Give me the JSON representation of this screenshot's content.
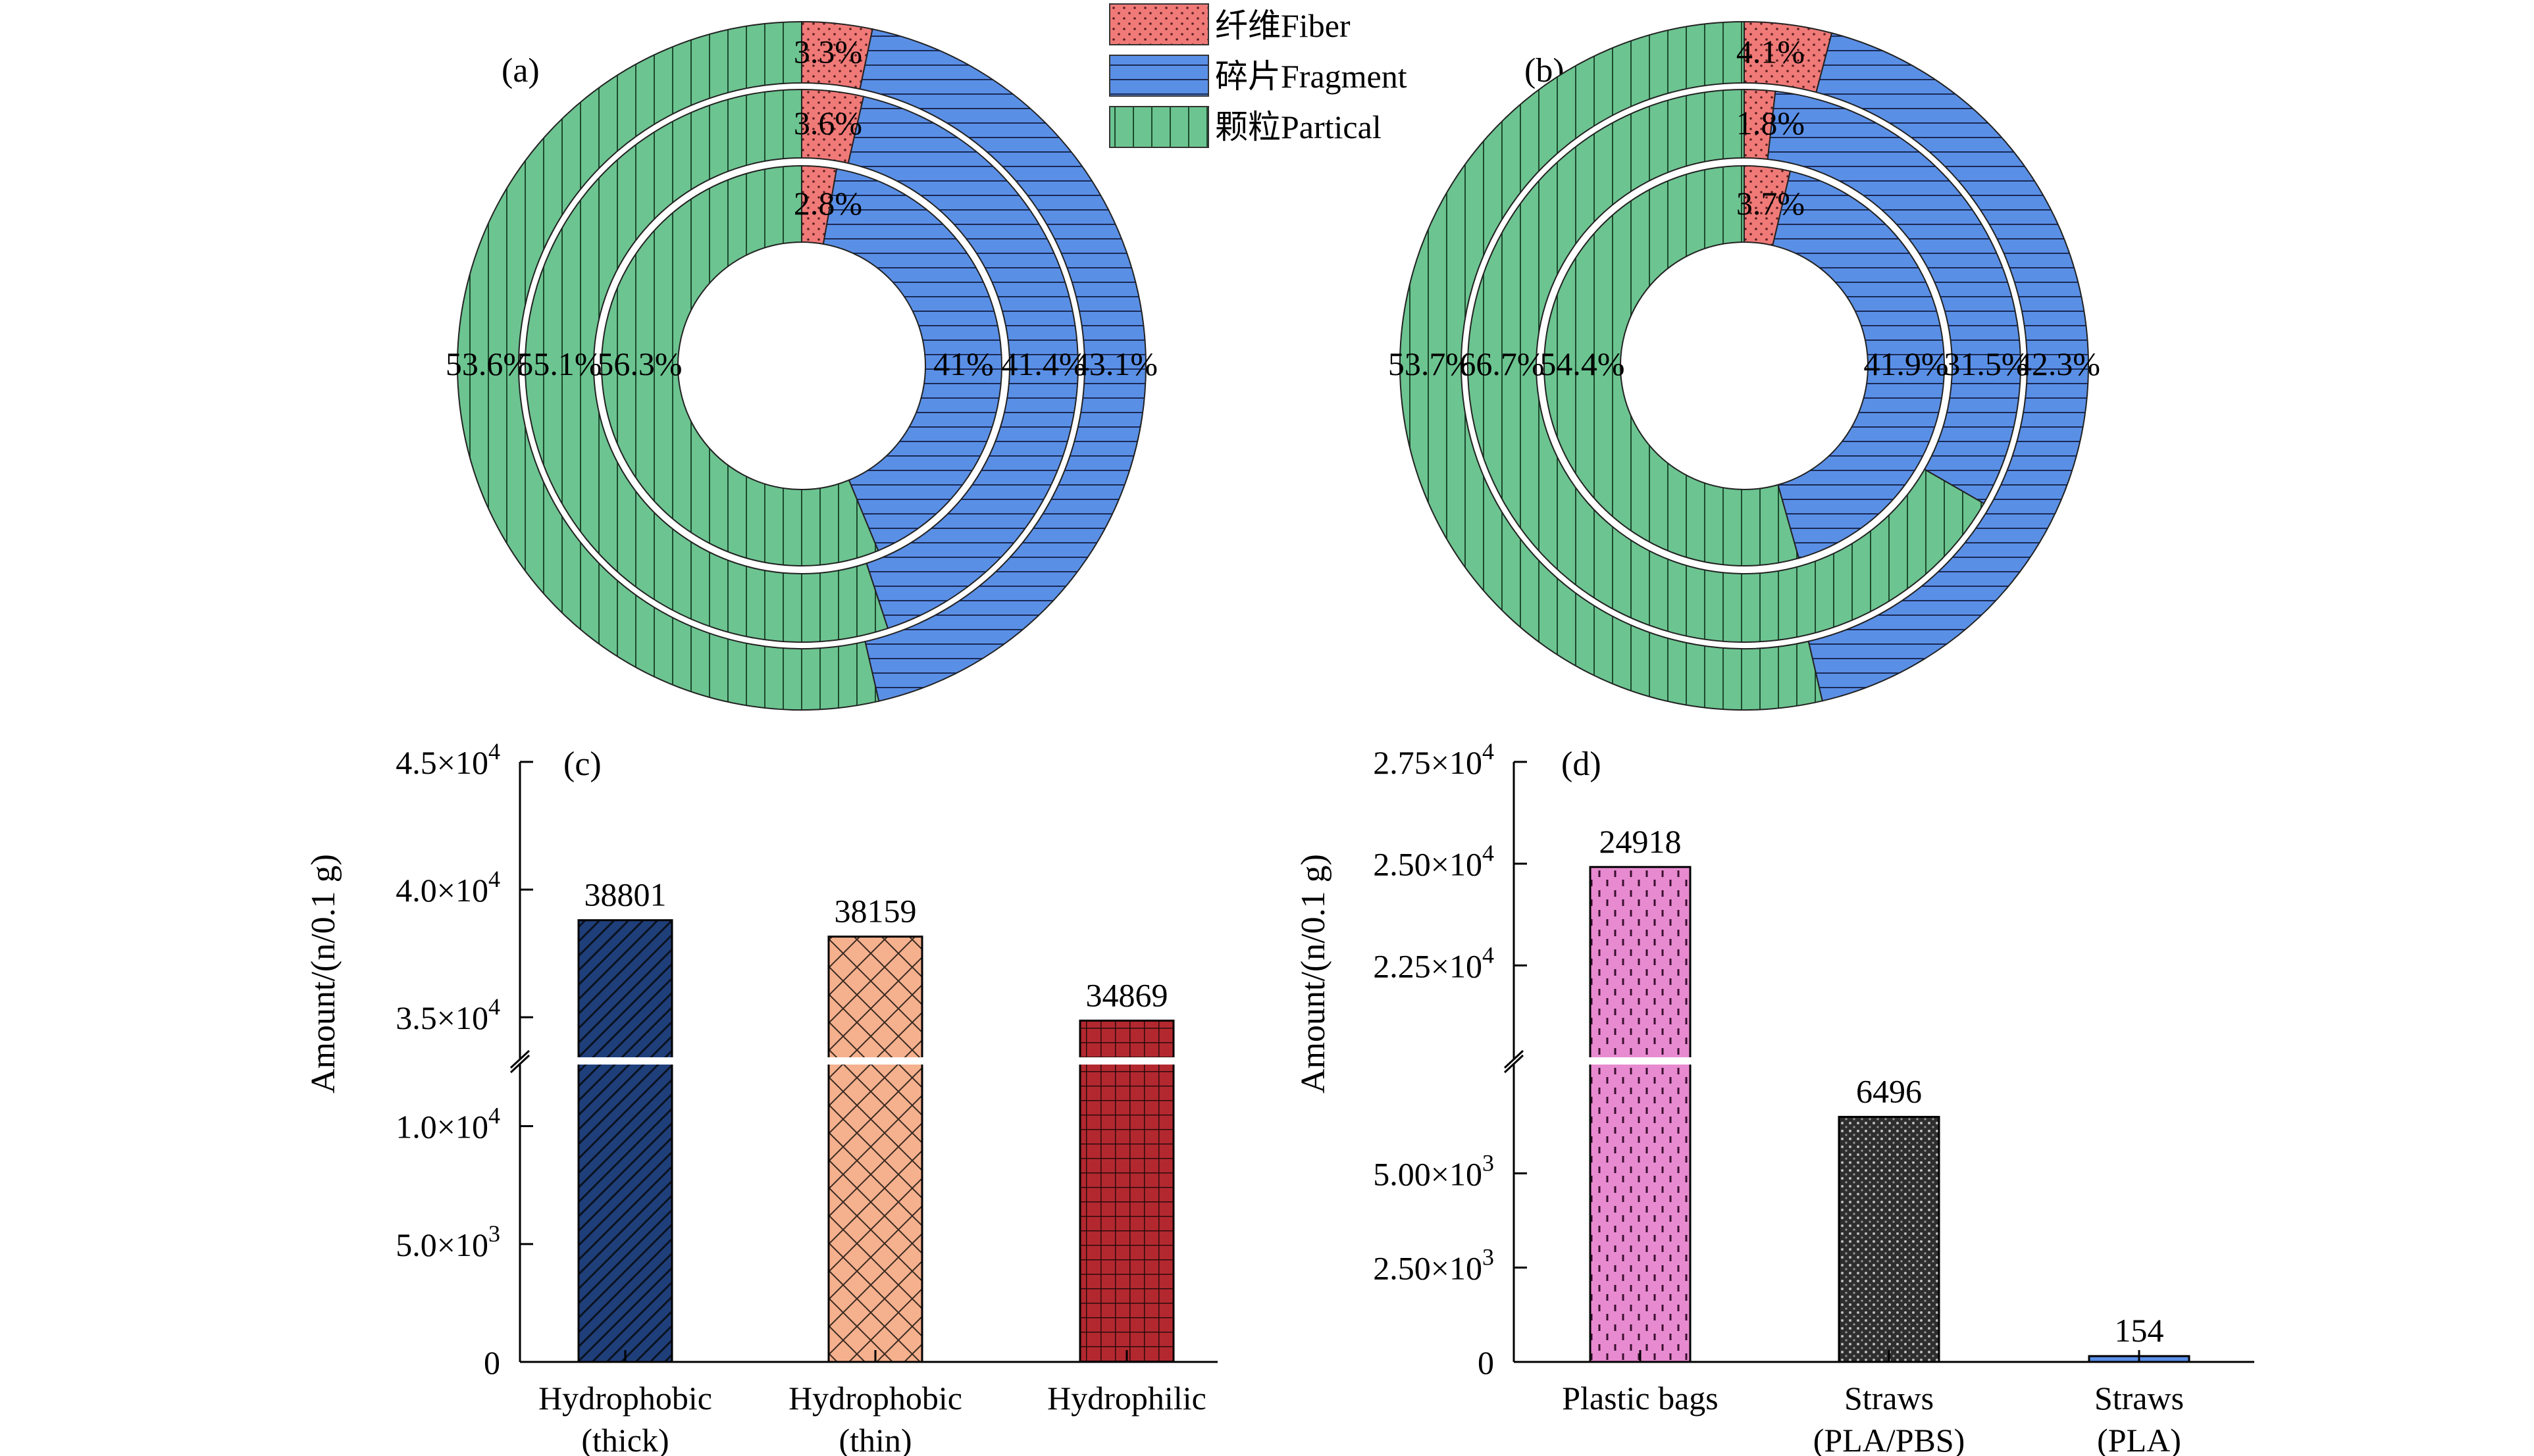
{
  "legend": {
    "items": [
      {
        "key": "fiber",
        "label": "纤维Fiber",
        "color": "#f07a78"
      },
      {
        "key": "fragment",
        "label": "碎片Fragment",
        "color": "#5a8fe6"
      },
      {
        "key": "partical",
        "label": "颗粒Partical",
        "color": "#6cc490"
      }
    ]
  },
  "chart_data": [
    {
      "type": "pie",
      "panel_label": "(a)",
      "categories": [
        "纤维Fiber",
        "碎片Fragment",
        "颗粒Partical"
      ],
      "rings": [
        {
          "values": [
            3.3,
            43.1,
            53.6
          ],
          "labels": [
            "3.3%",
            "43.1%",
            "53.6%"
          ]
        },
        {
          "values": [
            3.6,
            41.4,
            55.1
          ],
          "labels": [
            "3.6%",
            "41.4%",
            "55.1%"
          ]
        },
        {
          "values": [
            2.8,
            41,
            56.3
          ],
          "labels": [
            "2.8%",
            "41%",
            "56.3%"
          ]
        }
      ]
    },
    {
      "type": "pie",
      "panel_label": "(b)",
      "categories": [
        "纤维Fiber",
        "碎片Fragment",
        "颗粒Partical"
      ],
      "rings": [
        {
          "values": [
            4.1,
            42.3,
            53.7
          ],
          "labels": [
            "4.1%",
            "42.3%",
            "53.7%"
          ]
        },
        {
          "values": [
            1.8,
            31.5,
            66.7
          ],
          "labels": [
            "1.8%",
            "31.5%",
            "66.7%"
          ]
        },
        {
          "values": [
            3.7,
            41.9,
            54.4
          ],
          "labels": [
            "3.7%",
            "41.9%",
            "54.4%"
          ]
        }
      ]
    },
    {
      "type": "bar",
      "panel_label": "(c)",
      "ylabel": "Amount/(n/0.1 g)",
      "categories": [
        [
          "Hydrophobic",
          "(thick)"
        ],
        [
          "Hydrophobic",
          "(thin)"
        ],
        [
          "Hydrophilic"
        ]
      ],
      "values": [
        38801,
        38159,
        34869
      ],
      "value_labels": [
        "38801",
        "38159",
        "34869"
      ],
      "colors": [
        "#1f3f7a",
        "#f5b08e",
        "#b3282f"
      ],
      "patterns": [
        "diagonal",
        "crosshatch",
        "grid"
      ],
      "axis_break": true,
      "y_lower": {
        "range": [
          0,
          12000
        ],
        "ticks": [
          0,
          5000,
          10000
        ],
        "tick_labels": [
          {
            "m": "0",
            "e": ""
          },
          {
            "m": "5.0×10",
            "e": "3"
          },
          {
            "m": "1.0×10",
            "e": "4"
          }
        ]
      },
      "y_upper": {
        "range": [
          34000,
          45000
        ],
        "ticks": [
          35000,
          40000,
          45000
        ],
        "tick_labels": [
          {
            "m": "3.5×10",
            "e": "4"
          },
          {
            "m": "4.0×10",
            "e": "4"
          },
          {
            "m": "4.5×10",
            "e": "4"
          }
        ]
      }
    },
    {
      "type": "bar",
      "panel_label": "(d)",
      "ylabel": "Amount/(n/0.1 g)",
      "categories": [
        [
          "Plastic bags"
        ],
        [
          "Straws",
          "(PLA/PBS)"
        ],
        [
          "Straws",
          "(PLA)"
        ]
      ],
      "values": [
        24918,
        6496,
        154
      ],
      "value_labels": [
        "24918",
        "6496",
        "154"
      ],
      "colors": [
        "#e88ad0",
        "#4a4a4a",
        "#5a8fe6"
      ],
      "patterns": [
        "dashes",
        "dots",
        "none"
      ],
      "axis_break": true,
      "y_lower": {
        "range": [
          0,
          7500
        ],
        "ticks": [
          0,
          2500,
          5000
        ],
        "tick_labels": [
          {
            "m": "0",
            "e": ""
          },
          {
            "m": "2.50×10",
            "e": "3"
          },
          {
            "m": "5.00×10",
            "e": "3"
          }
        ]
      },
      "y_upper": {
        "range": [
          20600,
          27500
        ],
        "ticks": [
          22500,
          25000,
          27500
        ],
        "tick_labels": [
          {
            "m": "2.25×10",
            "e": "4"
          },
          {
            "m": "2.50×10",
            "e": "4"
          },
          {
            "m": "2.75×10",
            "e": "4"
          }
        ]
      }
    }
  ]
}
